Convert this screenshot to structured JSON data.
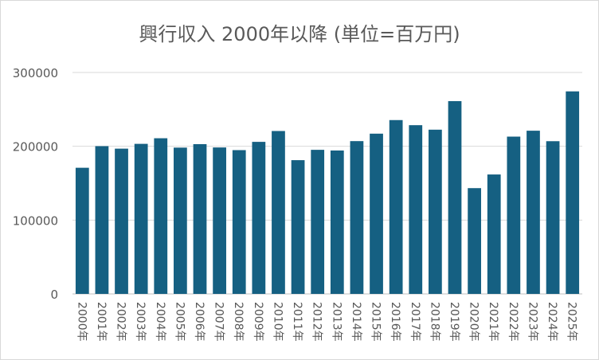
{
  "chart_data": {
    "type": "bar",
    "title": "興行収入 2000年以降 (単位=百万円)",
    "xlabel": "",
    "ylabel": "",
    "categories": [
      "2000年",
      "2001年",
      "2002年",
      "2003年",
      "2004年",
      "2005年",
      "2006年",
      "2007年",
      "2008年",
      "2009年",
      "2010年",
      "2011年",
      "2012年",
      "2013年",
      "2014年",
      "2015年",
      "2016年",
      "2017年",
      "2018年",
      "2019年",
      "2020年",
      "2021年",
      "2022年",
      "2023年",
      "2024年",
      "2025年"
    ],
    "values": [
      170900,
      200200,
      196800,
      203300,
      210900,
      198200,
      202900,
      198400,
      194800,
      206000,
      220700,
      181200,
      195200,
      194300,
      207000,
      217100,
      235500,
      228600,
      222500,
      261200,
      143300,
      161800,
      213100,
      221100,
      206900,
      274400
    ],
    "ylim": [
      0,
      300000
    ],
    "yticks": [
      0,
      100000,
      200000,
      300000
    ],
    "grid": true,
    "legend": "none",
    "bar_color": "#156082",
    "grid_color": "#d9d9d9",
    "text_color": "#595959"
  }
}
